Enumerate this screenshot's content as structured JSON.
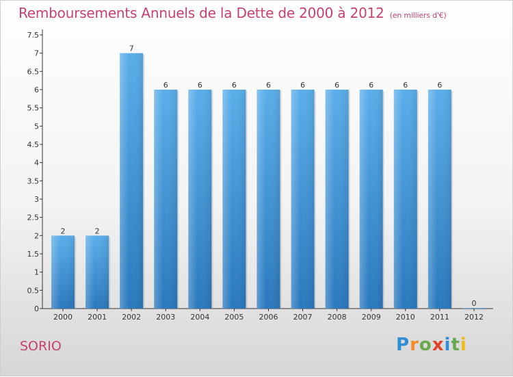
{
  "title": "Remboursements Annuels de la Dette de 2000 à 2012",
  "unit_note": "(en milliers d'€)",
  "place_name": "SORIO",
  "logo": {
    "letters": [
      "P",
      "r",
      "o",
      "x",
      "i",
      "t",
      "i"
    ],
    "colors": [
      "#2f8fd6",
      "#f28c28",
      "#6aa84f",
      "#e1442b",
      "#2f8fd6",
      "#6aa84f",
      "#f2b818"
    ]
  },
  "chart_data": {
    "type": "bar",
    "categories": [
      "2000",
      "2001",
      "2002",
      "2003",
      "2004",
      "2005",
      "2006",
      "2007",
      "2008",
      "2009",
      "2010",
      "2011",
      "2012"
    ],
    "values": [
      2,
      2,
      7,
      6,
      6,
      6,
      6,
      6,
      6,
      6,
      6,
      6,
      0
    ],
    "data_labels": [
      "2",
      "2",
      "7",
      "6",
      "6",
      "6",
      "6",
      "6",
      "6",
      "6",
      "6",
      "6",
      "0"
    ],
    "ylim": [
      0,
      7.5
    ],
    "yticks": [
      "0",
      "0.5",
      "1",
      "1.5",
      "2",
      "2.5",
      "3",
      "3.5",
      "4",
      "4.5",
      "5",
      "5.5",
      "6",
      "6.5",
      "7",
      "7.5"
    ],
    "ytick_values": [
      0,
      0.5,
      1,
      1.5,
      2,
      2.5,
      3,
      3.5,
      4,
      4.5,
      5,
      5.5,
      6,
      6.5,
      7,
      7.5
    ],
    "grid": false,
    "bar_color": "#3f95d8"
  }
}
